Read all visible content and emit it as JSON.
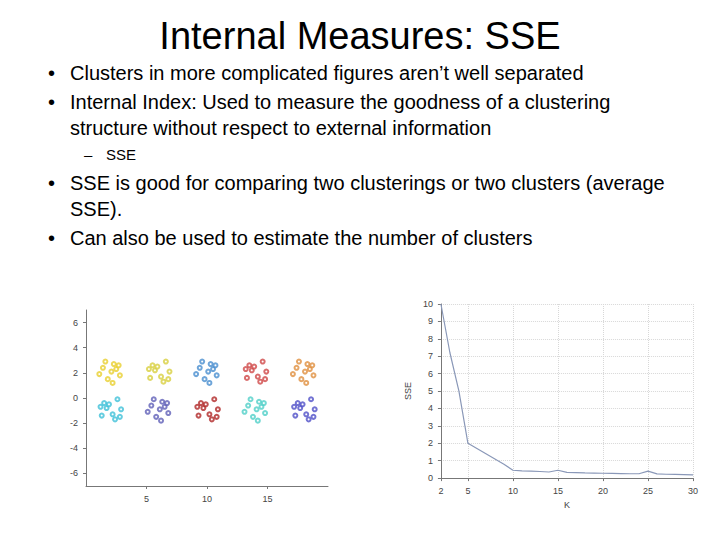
{
  "slide": {
    "title": "Internal Measures: SSE",
    "bullets": [
      {
        "text": "Clusters in more complicated figures aren’t well separated"
      },
      {
        "text": "Internal Index: Used to measure the goodness of a clustering structure without respect to external information",
        "sub": [
          "SSE"
        ]
      },
      {
        "text": "SSE is good for comparing two clusterings or two clusters (average SSE)."
      },
      {
        "text": "Can also be used to estimate the number of clusters"
      }
    ]
  },
  "chart_data": [
    {
      "type": "scatter",
      "xlim": [
        0,
        20
      ],
      "ylim": [
        -7,
        7
      ],
      "xticks": [
        5,
        10,
        15
      ],
      "yticks": [
        -6,
        -4,
        -2,
        0,
        2,
        4,
        6
      ],
      "marker": "circle",
      "grid": false,
      "series": [
        {
          "color": "#e8d030",
          "values": [
            [
              1.4,
              2.4
            ],
            [
              2.3,
              2.7
            ],
            [
              2.8,
              1.8
            ],
            [
              1.8,
              1.5
            ],
            [
              2.1,
              2.1
            ],
            [
              1.1,
              1.9
            ],
            [
              2.5,
              2.3
            ],
            [
              2.2,
              1.2
            ],
            [
              1.6,
              2.9
            ],
            [
              2.7,
              2.6
            ]
          ]
        },
        {
          "color": "#d8d040",
          "values": [
            [
              5.7,
              2.2
            ],
            [
              6.6,
              2.9
            ],
            [
              6.9,
              2.1
            ],
            [
              5.3,
              1.6
            ],
            [
              6.2,
              1.7
            ],
            [
              5.5,
              2.6
            ],
            [
              6.4,
              1.3
            ],
            [
              5.9,
              2.5
            ],
            [
              6.8,
              1.5
            ],
            [
              5.2,
              2.3
            ]
          ]
        },
        {
          "color": "#4a8ed0",
          "values": [
            [
              9.4,
              2.4
            ],
            [
              10.3,
              2.7
            ],
            [
              10.8,
              1.8
            ],
            [
              9.8,
              1.5
            ],
            [
              10.1,
              2.1
            ],
            [
              9.1,
              1.9
            ],
            [
              10.5,
              2.3
            ],
            [
              10.2,
              1.2
            ],
            [
              9.6,
              2.9
            ],
            [
              10.7,
              2.6
            ]
          ]
        },
        {
          "color": "#d04848",
          "values": [
            [
              13.7,
              2.2
            ],
            [
              14.6,
              2.9
            ],
            [
              14.9,
              2.1
            ],
            [
              13.3,
              1.6
            ],
            [
              14.2,
              1.7
            ],
            [
              13.5,
              2.6
            ],
            [
              14.4,
              1.3
            ],
            [
              13.9,
              2.5
            ],
            [
              14.8,
              1.5
            ],
            [
              13.2,
              2.3
            ]
          ]
        },
        {
          "color": "#e09040",
          "values": [
            [
              17.4,
              2.4
            ],
            [
              18.3,
              2.7
            ],
            [
              18.8,
              1.8
            ],
            [
              17.8,
              1.5
            ],
            [
              18.1,
              2.1
            ],
            [
              17.1,
              1.9
            ],
            [
              18.5,
              2.3
            ],
            [
              18.2,
              1.2
            ],
            [
              17.6,
              2.9
            ],
            [
              18.7,
              2.6
            ]
          ]
        },
        {
          "color": "#40c0d8",
          "values": [
            [
              1.7,
              -0.8
            ],
            [
              2.6,
              -0.1
            ],
            [
              2.9,
              -0.9
            ],
            [
              1.3,
              -1.4
            ],
            [
              2.2,
              -1.3
            ],
            [
              1.5,
              -0.4
            ],
            [
              2.4,
              -1.7
            ],
            [
              1.9,
              -0.5
            ],
            [
              2.8,
              -1.5
            ],
            [
              1.2,
              -0.7
            ]
          ]
        },
        {
          "color": "#6060b8",
          "values": [
            [
              5.4,
              -0.6
            ],
            [
              6.3,
              -0.3
            ],
            [
              6.8,
              -1.2
            ],
            [
              5.8,
              -1.5
            ],
            [
              6.1,
              -0.9
            ],
            [
              5.1,
              -1.1
            ],
            [
              6.5,
              -0.7
            ],
            [
              6.2,
              -1.8
            ],
            [
              5.6,
              -0.1
            ],
            [
              6.7,
              -0.4
            ]
          ]
        },
        {
          "color": "#b02828",
          "values": [
            [
              9.7,
              -0.8
            ],
            [
              10.6,
              -0.1
            ],
            [
              10.9,
              -0.9
            ],
            [
              9.3,
              -1.4
            ],
            [
              10.2,
              -1.3
            ],
            [
              9.5,
              -0.4
            ],
            [
              10.4,
              -1.7
            ],
            [
              9.9,
              -0.5
            ],
            [
              10.8,
              -1.5
            ],
            [
              9.2,
              -0.7
            ]
          ]
        },
        {
          "color": "#50d0c8",
          "values": [
            [
              13.4,
              -0.6
            ],
            [
              14.3,
              -0.3
            ],
            [
              14.8,
              -1.2
            ],
            [
              13.8,
              -1.5
            ],
            [
              14.1,
              -0.9
            ],
            [
              13.1,
              -1.1
            ],
            [
              14.5,
              -0.7
            ],
            [
              14.2,
              -1.8
            ],
            [
              13.6,
              -0.1
            ],
            [
              14.7,
              -0.4
            ]
          ]
        },
        {
          "color": "#5050c8",
          "values": [
            [
              17.7,
              -0.8
            ],
            [
              18.6,
              -0.1
            ],
            [
              18.9,
              -0.9
            ],
            [
              17.3,
              -1.4
            ],
            [
              18.2,
              -1.3
            ],
            [
              17.5,
              -0.4
            ],
            [
              18.4,
              -1.7
            ],
            [
              17.9,
              -0.5
            ],
            [
              18.8,
              -1.5
            ],
            [
              17.2,
              -0.7
            ]
          ]
        }
      ]
    },
    {
      "type": "line",
      "xlabel": "K",
      "ylabel": "SSE",
      "color": "#8a98b8",
      "grid": true,
      "xlim": [
        2,
        30
      ],
      "ylim": [
        0,
        10
      ],
      "xticks": [
        2,
        5,
        10,
        15,
        20,
        25,
        30
      ],
      "yticks": [
        0,
        1,
        2,
        3,
        4,
        5,
        6,
        7,
        8,
        9,
        10
      ],
      "x": [
        2,
        3,
        4,
        5,
        6,
        7,
        8,
        9,
        10,
        11,
        12,
        13,
        14,
        15,
        16,
        17,
        18,
        19,
        20,
        21,
        22,
        23,
        24,
        25,
        26,
        27,
        28,
        29,
        30
      ],
      "values": [
        10,
        7.2,
        5.0,
        2.0,
        1.7,
        1.4,
        1.1,
        0.8,
        0.45,
        0.42,
        0.4,
        0.38,
        0.35,
        0.45,
        0.33,
        0.32,
        0.3,
        0.29,
        0.28,
        0.27,
        0.26,
        0.25,
        0.25,
        0.4,
        0.24,
        0.22,
        0.21,
        0.2,
        0.19
      ]
    }
  ]
}
